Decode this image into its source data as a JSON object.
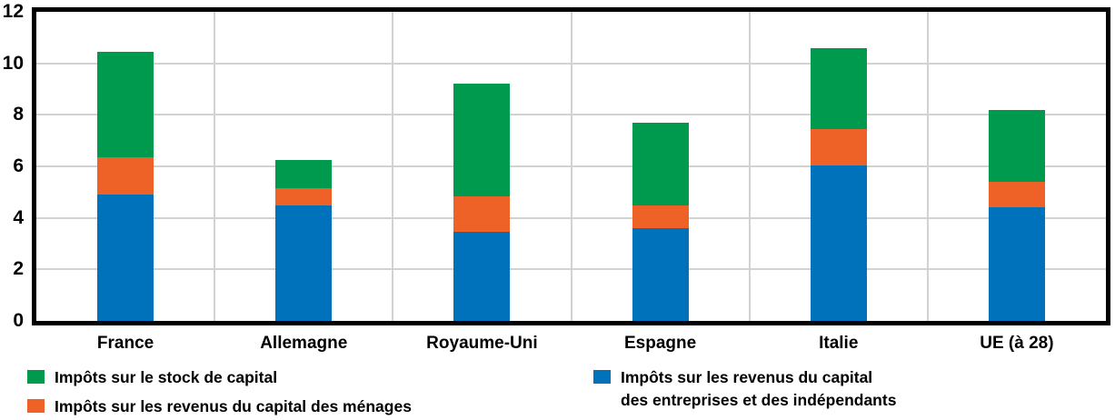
{
  "chart_data": {
    "type": "bar",
    "stacked": true,
    "title": "",
    "xlabel": "",
    "ylabel": "",
    "categories": [
      "France",
      "Allemagne",
      "Royaume-Uni",
      "Espagne",
      "Italie",
      "UE (à 28)"
    ],
    "series": [
      {
        "key": "entreprises",
        "name": "Impôts sur les revenus du capital des entreprises et des indépendants",
        "color": "#0072BC",
        "values": [
          4.9,
          4.5,
          3.45,
          3.6,
          6.05,
          4.4
        ]
      },
      {
        "key": "menages",
        "name": "Impôts sur les revenus du capital des ménages",
        "color": "#EE6227",
        "values": [
          1.45,
          0.65,
          1.4,
          0.9,
          1.4,
          1.0
        ]
      },
      {
        "key": "stock",
        "name": "Impôts sur le stock de capital",
        "color": "#009A4E",
        "values": [
          4.1,
          1.1,
          4.35,
          3.2,
          3.15,
          2.8
        ]
      }
    ],
    "stack_totals": [
      10.45,
      6.25,
      9.2,
      7.7,
      10.6,
      8.2
    ],
    "ylim": [
      0,
      12
    ],
    "yticks": [
      0,
      2,
      4,
      6,
      8,
      10,
      12
    ],
    "grid": true,
    "grid_color": "#D2D2D2",
    "axis_color": "#000000",
    "legend_position": "bottom"
  },
  "legend": {
    "items": [
      {
        "key": "stock",
        "color": "#009A4E",
        "lines": [
          "Impôts sur le stock de capital"
        ]
      },
      {
        "key": "menages",
        "color": "#EE6227",
        "lines": [
          "Impôts sur les revenus du capital des ménages"
        ]
      },
      {
        "key": "entreprises",
        "color": "#0072BC",
        "lines": [
          "Impôts sur les revenus du capital",
          "des entreprises et des indépendants"
        ]
      }
    ]
  },
  "colors": {
    "blue": "#0072BC",
    "orange": "#EE6227",
    "green": "#009A4E",
    "grid": "#D2D2D2",
    "border": "#000000",
    "background": "#FFFFFF"
  }
}
